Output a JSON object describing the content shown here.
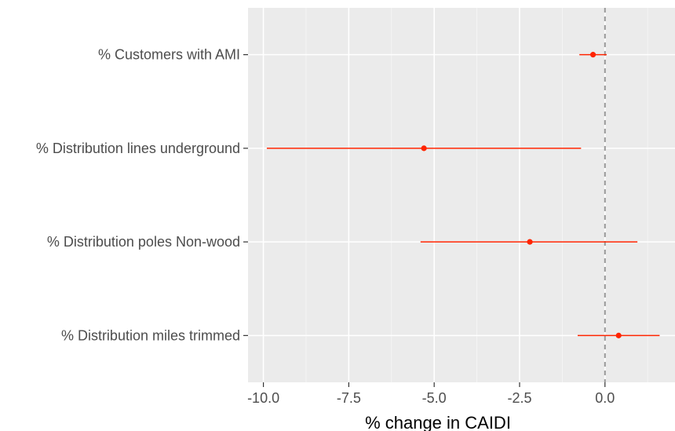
{
  "chart_data": {
    "type": "forest",
    "title": "",
    "xlabel": "% change in CAIDI",
    "ylabel": "",
    "xlim": [
      -10.45,
      2.05
    ],
    "xticks": [
      -10.0,
      -7.5,
      -5.0,
      -2.5,
      0.0
    ],
    "xtick_labels": [
      "-10.0",
      "-7.5",
      "-5.0",
      "-2.5",
      "0.0"
    ],
    "reference_line": 0,
    "grid": true,
    "colors": {
      "panel": "#ebebeb",
      "grid_major": "#ffffff",
      "point": "#ff2400",
      "reference": "#999999"
    },
    "items": [
      {
        "label": "% Customers with AMI",
        "estimate": -0.35,
        "lower": -0.75,
        "upper": 0.05
      },
      {
        "label": "% Distribution lines underground",
        "estimate": -5.3,
        "lower": -9.9,
        "upper": -0.7
      },
      {
        "label": "% Distribution poles Non-wood",
        "estimate": -2.2,
        "lower": -5.4,
        "upper": 0.95
      },
      {
        "label": "% Distribution miles trimmed",
        "estimate": 0.4,
        "lower": -0.8,
        "upper": 1.6
      }
    ]
  }
}
